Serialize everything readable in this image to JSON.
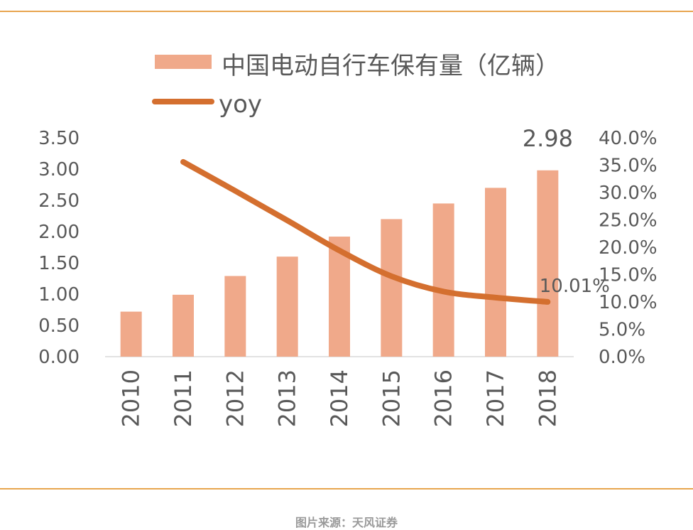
{
  "colors": {
    "bar": "#f0a98a",
    "line": "#d46f2f",
    "rule": "#e8a54f",
    "text": "#595959",
    "source": "#9a9a9a"
  },
  "chart_data": {
    "type": "bar",
    "categories": [
      "2010",
      "2011",
      "2012",
      "2013",
      "2014",
      "2015",
      "2016",
      "2017",
      "2018"
    ],
    "series": [
      {
        "name": "中国电动自行车保有量（亿辆）",
        "kind": "bar",
        "axis": "left",
        "values": [
          0.72,
          0.99,
          1.29,
          1.6,
          1.92,
          2.2,
          2.45,
          2.7,
          2.98
        ]
      },
      {
        "name": "yoy",
        "kind": "line",
        "axis": "right",
        "values": [
          null,
          35.6,
          30.3,
          24.9,
          19.4,
          14.7,
          11.9,
          10.8,
          10.01
        ]
      }
    ],
    "left_axis": {
      "ylim": [
        0,
        3.5
      ],
      "ticks": [
        "0.00",
        "0.50",
        "1.00",
        "1.50",
        "2.00",
        "2.50",
        "3.00",
        "3.50"
      ]
    },
    "right_axis": {
      "ylim": [
        0,
        40
      ],
      "ticks": [
        "0.0%",
        "5.0%",
        "10.0%",
        "15.0%",
        "20.0%",
        "25.0%",
        "30.0%",
        "35.0%",
        "40.0%"
      ]
    },
    "data_labels": {
      "last_bar": "2.98",
      "last_line": "10.01%"
    },
    "legend_position": "top"
  },
  "source": "图片来源：天风证券"
}
